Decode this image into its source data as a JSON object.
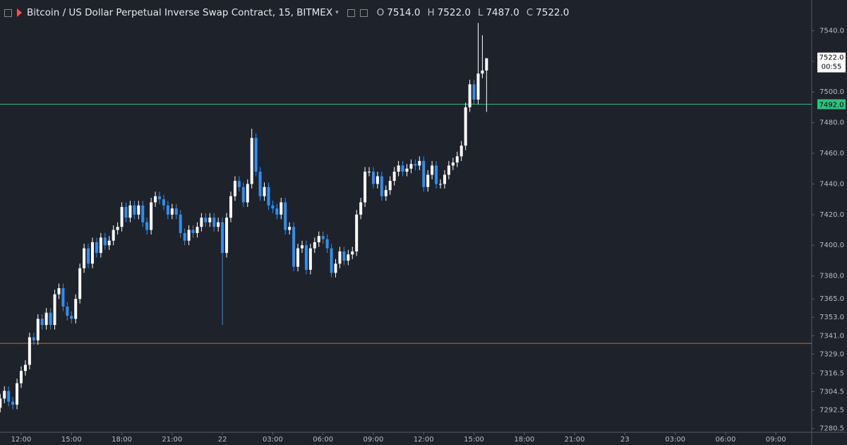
{
  "header": {
    "title": "Bitcoin / US Dollar Perpetual Inverse Swap Contract, 15, BITMEX",
    "ohlc": [
      {
        "key": "O",
        "text": "7514.0"
      },
      {
        "key": "H",
        "text": "7522.0"
      },
      {
        "key": "L",
        "text": "7487.0"
      },
      {
        "key": "C",
        "text": "7522.0"
      }
    ]
  },
  "chart_data": {
    "type": "candlestick",
    "up_color": "#ffffff",
    "down_color": "#2f8ff0",
    "ylim": [
      7278,
      7560
    ],
    "yticks": [
      {
        "value": 7540,
        "label": "7540.0"
      },
      {
        "value": 7520,
        "label": "7520.0"
      },
      {
        "value": 7500,
        "label": "7500.0"
      },
      {
        "value": 7480,
        "label": "7480.0"
      },
      {
        "value": 7460,
        "label": "7460.0"
      },
      {
        "value": 7440,
        "label": "7440.0"
      },
      {
        "value": 7420,
        "label": "7420.0"
      },
      {
        "value": 7400,
        "label": "7400.0"
      },
      {
        "value": 7380,
        "label": "7380.0"
      },
      {
        "value": 7365,
        "label": "7365.0"
      },
      {
        "value": 7353,
        "label": "7353.0"
      },
      {
        "value": 7341,
        "label": "7341.0"
      },
      {
        "value": 7329,
        "label": "7329.0"
      },
      {
        "value": 7316.5,
        "label": "7316.5"
      },
      {
        "value": 7304.5,
        "label": "7304.5"
      },
      {
        "value": 7292.5,
        "label": "7292.5"
      },
      {
        "value": 7280.5,
        "label": "7280.5"
      }
    ],
    "xticks": [
      {
        "value": 5,
        "label": "12:00"
      },
      {
        "value": 17,
        "label": "15:00"
      },
      {
        "value": 29,
        "label": "18:00"
      },
      {
        "value": 41,
        "label": "21:00"
      },
      {
        "value": 53,
        "label": "22"
      },
      {
        "value": 65,
        "label": "03:00"
      },
      {
        "value": 77,
        "label": "06:00"
      },
      {
        "value": 89,
        "label": "09:00"
      },
      {
        "value": 101,
        "label": "12:00"
      },
      {
        "value": 113,
        "label": "15:00"
      },
      {
        "value": 125,
        "label": "18:00"
      },
      {
        "value": 137,
        "label": "21:00"
      },
      {
        "value": 149,
        "label": "23"
      },
      {
        "value": 161,
        "label": "03:00"
      },
      {
        "value": 173,
        "label": "06:00"
      },
      {
        "value": 185,
        "label": "09:00"
      }
    ],
    "open": [
      7294,
      7300,
      7305,
      7298,
      7296,
      7310,
      7318,
      7322,
      7340,
      7338,
      7352,
      7348,
      7356,
      7348,
      7368,
      7372,
      7360,
      7354,
      7352,
      7365,
      7385,
      7398,
      7388,
      7402,
      7395,
      7405,
      7400,
      7403,
      7410,
      7412,
      7425,
      7418,
      7426,
      7420,
      7426,
      7415,
      7410,
      7428,
      7432,
      7430,
      7426,
      7420,
      7424,
      7420,
      7408,
      7403,
      7410,
      7408,
      7412,
      7418,
      7415,
      7418,
      7412,
      7415,
      7395,
      7418,
      7432,
      7442,
      7438,
      7428,
      7440,
      7470,
      7448,
      7432,
      7438,
      7426,
      7424,
      7420,
      7428,
      7410,
      7412,
      7386,
      7398,
      7400,
      7384,
      7398,
      7402,
      7406,
      7404,
      7398,
      7382,
      7388,
      7396,
      7390,
      7394,
      7396,
      7420,
      7428,
      7448,
      7448,
      7440,
      7445,
      7432,
      7436,
      7442,
      7448,
      7452,
      7448,
      7450,
      7453,
      7452,
      7455,
      7438,
      7446,
      7452,
      7440,
      7440,
      7446,
      7452,
      7454,
      7458,
      7465,
      7490,
      7505,
      7495,
      7512,
      7514
    ],
    "high": [
      7303,
      7308,
      7308,
      7301,
      7313,
      7321,
      7325,
      7343,
      7343,
      7355,
      7355,
      7359,
      7359,
      7371,
      7375,
      7375,
      7363,
      7357,
      7368,
      7388,
      7401,
      7401,
      7405,
      7405,
      7408,
      7408,
      7406,
      7413,
      7415,
      7428,
      7428,
      7429,
      7429,
      7429,
      7429,
      7418,
      7431,
      7435,
      7435,
      7433,
      7429,
      7427,
      7427,
      7423,
      7411,
      7413,
      7413,
      7415,
      7421,
      7421,
      7421,
      7421,
      7418,
      7418,
      7421,
      7435,
      7445,
      7445,
      7441,
      7443,
      7476,
      7473,
      7451,
      7441,
      7441,
      7429,
      7427,
      7431,
      7431,
      7415,
      7415,
      7401,
      7403,
      7403,
      7401,
      7405,
      7409,
      7409,
      7407,
      7401,
      7391,
      7399,
      7399,
      7397,
      7399,
      7423,
      7431,
      7451,
      7451,
      7451,
      7448,
      7448,
      7439,
      7445,
      7451,
      7455,
      7455,
      7453,
      7456,
      7456,
      7458,
      7458,
      7449,
      7455,
      7455,
      7443,
      7449,
      7455,
      7457,
      7461,
      7468,
      7493,
      7508,
      7508,
      7545,
      7537,
      7522
    ],
    "low": [
      7291,
      7297,
      7295,
      7293,
      7293,
      7307,
      7315,
      7319,
      7335,
      7335,
      7345,
      7345,
      7345,
      7345,
      7365,
      7357,
      7351,
      7349,
      7349,
      7362,
      7382,
      7385,
      7385,
      7392,
      7392,
      7397,
      7397,
      7400,
      7407,
      7409,
      7415,
      7415,
      7417,
      7417,
      7412,
      7407,
      7407,
      7425,
      7427,
      7423,
      7417,
      7417,
      7417,
      7405,
      7400,
      7400,
      7405,
      7405,
      7409,
      7412,
      7412,
      7409,
      7409,
      7348,
      7392,
      7415,
      7429,
      7435,
      7425,
      7425,
      7437,
      7445,
      7429,
      7429,
      7423,
      7421,
      7417,
      7417,
      7407,
      7407,
      7383,
      7383,
      7395,
      7381,
      7381,
      7395,
      7399,
      7401,
      7395,
      7379,
      7379,
      7385,
      7387,
      7387,
      7391,
      7393,
      7417,
      7425,
      7445,
      7437,
      7437,
      7429,
      7429,
      7433,
      7439,
      7445,
      7445,
      7445,
      7447,
      7449,
      7449,
      7435,
      7435,
      7443,
      7437,
      7437,
      7437,
      7443,
      7449,
      7451,
      7455,
      7462,
      7487,
      7492,
      7492,
      7509,
      7487
    ],
    "close": [
      7300,
      7305,
      7298,
      7296,
      7310,
      7318,
      7322,
      7340,
      7338,
      7352,
      7348,
      7356,
      7348,
      7368,
      7372,
      7360,
      7354,
      7352,
      7365,
      7385,
      7398,
      7388,
      7402,
      7395,
      7405,
      7400,
      7403,
      7410,
      7412,
      7425,
      7418,
      7426,
      7420,
      7426,
      7415,
      7410,
      7428,
      7432,
      7430,
      7426,
      7420,
      7424,
      7420,
      7408,
      7403,
      7410,
      7408,
      7412,
      7418,
      7415,
      7418,
      7412,
      7415,
      7395,
      7418,
      7432,
      7442,
      7438,
      7428,
      7440,
      7470,
      7448,
      7432,
      7438,
      7426,
      7424,
      7420,
      7428,
      7410,
      7412,
      7386,
      7398,
      7400,
      7384,
      7398,
      7402,
      7406,
      7404,
      7398,
      7382,
      7388,
      7396,
      7390,
      7394,
      7396,
      7420,
      7428,
      7448,
      7448,
      7440,
      7445,
      7432,
      7436,
      7442,
      7448,
      7452,
      7448,
      7450,
      7453,
      7452,
      7455,
      7438,
      7446,
      7452,
      7440,
      7440,
      7446,
      7452,
      7454,
      7458,
      7465,
      7490,
      7505,
      7495,
      7512,
      7514,
      7522
    ],
    "last_price_label": "7522.0",
    "countdown": "00:55",
    "lines": [
      {
        "value": 7492,
        "color": "#2fc27f",
        "value_label": "7492.0"
      },
      {
        "value": 7336,
        "color": "#e0622a"
      }
    ]
  }
}
